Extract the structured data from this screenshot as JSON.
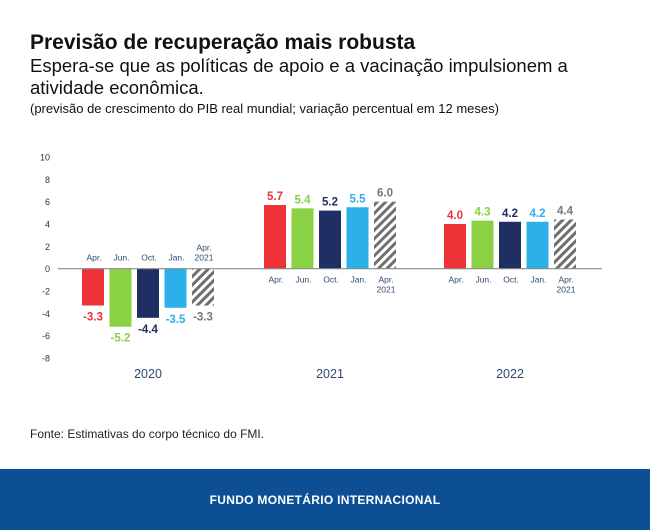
{
  "header": {
    "title": "Previsão de recuperação mais robusta",
    "subtitle": "Espera-se que as políticas de apoio e a vacinação impulsionem a atividade econômica.",
    "note": "(previsão de crescimento do PIB real mundial; variação percentual em 12 meses)"
  },
  "source": "Fonte: Estimativas do corpo técnico do FMI.",
  "footer": {
    "label": "FUNDO MONETÁRIO INTERNACIONAL",
    "color": "#0d4f94"
  },
  "chart_data": {
    "type": "bar",
    "title": "Previsão de recuperação mais robusta",
    "xlabel": "",
    "ylabel": "",
    "ylim": [
      -8,
      10
    ],
    "yticks": [
      10,
      8,
      6,
      4,
      2,
      0,
      -2,
      -4,
      -6,
      -8
    ],
    "groups": [
      "2020",
      "2021",
      "2022"
    ],
    "series": [
      {
        "name": "Apr.",
        "color": "#ee3338",
        "values": [
          -3.3,
          5.7,
          4.0
        ]
      },
      {
        "name": "Jun.",
        "color": "#8ad144",
        "values": [
          -5.2,
          5.4,
          4.3
        ]
      },
      {
        "name": "Oct.",
        "color": "#1f2e63",
        "values": [
          -4.4,
          5.2,
          4.2
        ]
      },
      {
        "name": "Jan.",
        "color": "#2bb0ea",
        "values": [
          -3.5,
          5.5,
          4.2
        ]
      },
      {
        "name": "Apr. 2021",
        "color": "#777777",
        "hatched": true,
        "values": [
          -3.3,
          6.0,
          4.4
        ]
      }
    ],
    "value_labels": [
      [
        "-3.3",
        "-5.2",
        "-4.4",
        "-3.5",
        "-3.3"
      ],
      [
        "5.7",
        "5.4",
        "5.2",
        "5.5",
        "6.0"
      ],
      [
        "4.0",
        "4.3",
        "4.2",
        "4.2",
        "4.4"
      ]
    ],
    "category_labels": [
      [
        "Apr.",
        "Jun.",
        "Oct.",
        "Jan.",
        "Apr.\n2021"
      ],
      [
        "Apr.",
        "Jun.",
        "Oct.",
        "Jan.",
        "Apr.\n2021"
      ],
      [
        "Apr.",
        "Jun.",
        "Oct.",
        "Jan.",
        "Apr.\n2021"
      ]
    ],
    "grid": false
  }
}
